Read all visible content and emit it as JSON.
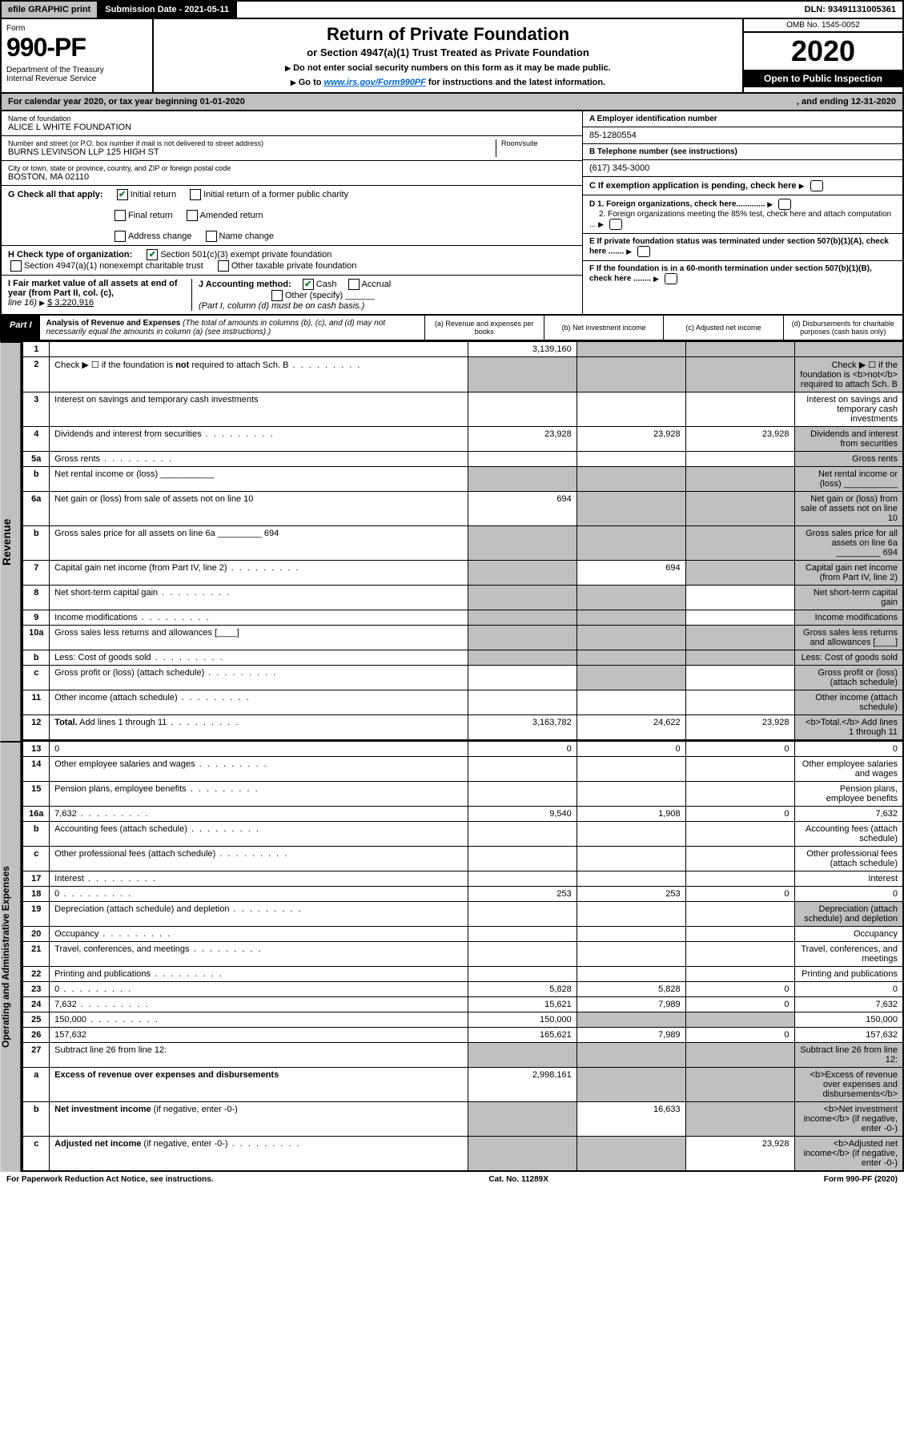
{
  "topbar": {
    "efile": "efile GRAPHIC print",
    "submission": "Submission Date - 2021-05-11",
    "dln": "DLN: 93491131005361"
  },
  "header": {
    "form": "Form",
    "formnum": "990-PF",
    "dept": "Department of the Treasury\nInternal Revenue Service",
    "title": "Return of Private Foundation",
    "subtitle": "or Section 4947(a)(1) Trust Treated as Private Foundation",
    "note1": "Do not enter social security numbers on this form as it may be made public.",
    "note2_pre": "Go to ",
    "note2_link": "www.irs.gov/Form990PF",
    "note2_post": " for instructions and the latest information.",
    "omb": "OMB No. 1545-0052",
    "year": "2020",
    "open": "Open to Public Inspection"
  },
  "calyear": {
    "pre": "For calendar year 2020, or tax year beginning 01-01-2020",
    "end": ", and ending 12-31-2020"
  },
  "id": {
    "name_lbl": "Name of foundation",
    "name": "ALICE L WHITE FOUNDATION",
    "addr_lbl": "Number and street (or P.O. box number if mail is not delivered to street address)",
    "addr": "BURNS LEVINSON LLP 125 HIGH ST",
    "room_lbl": "Room/suite",
    "city_lbl": "City or town, state or province, country, and ZIP or foreign postal code",
    "city": "BOSTON, MA  02110",
    "a_lbl": "A Employer identification number",
    "a_val": "85-1280554",
    "b_lbl": "B Telephone number (see instructions)",
    "b_val": "(617) 345-3000",
    "c_lbl": "C  If exemption application is pending, check here",
    "d1": "D 1. Foreign organizations, check here.............",
    "d2": "2. Foreign organizations meeting the 85% test, check here and attach computation ...",
    "e": "E  If private foundation status was terminated under section 507(b)(1)(A), check here .......",
    "f": "F  If the foundation is in a 60-month termination under section 507(b)(1)(B), check here ........"
  },
  "g": {
    "lbl": "G Check all that apply:",
    "initial": "Initial return",
    "initial_former": "Initial return of a former public charity",
    "final": "Final return",
    "amended": "Amended return",
    "addr": "Address change",
    "name": "Name change"
  },
  "h": {
    "lbl": "H Check type of organization:",
    "s501": "Section 501(c)(3) exempt private foundation",
    "s4947": "Section 4947(a)(1) nonexempt charitable trust",
    "other": "Other taxable private foundation"
  },
  "i": {
    "lbl": "I Fair market value of all assets at end of year (from Part II, col. (c),",
    "line": "line 16)",
    "val": "$  3,220,916"
  },
  "j": {
    "lbl": "J Accounting method:",
    "cash": "Cash",
    "accrual": "Accrual",
    "other": "Other (specify)",
    "note": "(Part I, column (d) must be on cash basis.)"
  },
  "part1": {
    "lbl": "Part I",
    "title": "Analysis of Revenue and Expenses",
    "desc": "(The total of amounts in columns (b), (c), and (d) may not necessarily equal the amounts in column (a) (see instructions).)",
    "col_a": "(a)   Revenue and expenses per books",
    "col_b": "(b)   Net investment income",
    "col_c": "(c)   Adjusted net income",
    "col_d": "(d)   Disbursements for charitable purposes (cash basis only)"
  },
  "revenue_label": "Revenue",
  "expense_label": "Operating and Administrative Expenses",
  "rows": [
    {
      "n": "1",
      "d": "",
      "a": "3,139,160",
      "b": "",
      "c": "",
      "shade_b": true,
      "shade_c": true,
      "shade_d": true
    },
    {
      "n": "2",
      "d": "Check ▶ ☐ if the foundation is <b>not</b> required to attach Sch. B",
      "dots": true,
      "shade_all": true
    },
    {
      "n": "3",
      "d": "Interest on savings and temporary cash investments"
    },
    {
      "n": "4",
      "d": "Dividends and interest from securities",
      "dots": true,
      "a": "23,928",
      "b": "23,928",
      "c": "23,928",
      "shade_d": true
    },
    {
      "n": "5a",
      "d": "Gross rents",
      "dots": true,
      "shade_d": true
    },
    {
      "n": "b",
      "d": "Net rental income or (loss)  ___________",
      "shade_all": true
    },
    {
      "n": "6a",
      "d": "Net gain or (loss) from sale of assets not on line 10",
      "a": "694",
      "shade_b": true,
      "shade_c": true,
      "shade_d": true
    },
    {
      "n": "b",
      "d": "Gross sales price for all assets on line 6a _________ 694",
      "shade_all": true
    },
    {
      "n": "7",
      "d": "Capital gain net income (from Part IV, line 2)",
      "dots": true,
      "b": "694",
      "shade_a": true,
      "shade_c": true,
      "shade_d": true
    },
    {
      "n": "8",
      "d": "Net short-term capital gain",
      "dots": true,
      "shade_a": true,
      "shade_b": true,
      "shade_d": true
    },
    {
      "n": "9",
      "d": "Income modifications",
      "dots": true,
      "shade_a": true,
      "shade_b": true,
      "shade_d": true
    },
    {
      "n": "10a",
      "d": "Gross sales less returns and allowances  [____]",
      "shade_all": true
    },
    {
      "n": "b",
      "d": "Less: Cost of goods sold",
      "dots": true,
      "shade_all": true
    },
    {
      "n": "c",
      "d": "Gross profit or (loss) (attach schedule)",
      "dots": true,
      "shade_b": true,
      "shade_d": true
    },
    {
      "n": "11",
      "d": "Other income (attach schedule)",
      "dots": true,
      "shade_d": true
    },
    {
      "n": "12",
      "d": "<b>Total.</b> Add lines 1 through 11",
      "dots": true,
      "a": "3,163,782",
      "b": "24,622",
      "c": "23,928",
      "shade_d": true
    }
  ],
  "exp_rows": [
    {
      "n": "13",
      "d": "0",
      "a": "0",
      "b": "0",
      "c": "0"
    },
    {
      "n": "14",
      "d": "Other employee salaries and wages",
      "dots": true
    },
    {
      "n": "15",
      "d": "Pension plans, employee benefits",
      "dots": true
    },
    {
      "n": "16a",
      "d": "7,632",
      "dots": true,
      "a": "9,540",
      "b": "1,908",
      "c": "0"
    },
    {
      "n": "b",
      "d": "Accounting fees (attach schedule)",
      "dots": true
    },
    {
      "n": "c",
      "d": "Other professional fees (attach schedule)",
      "dots": true
    },
    {
      "n": "17",
      "d": "Interest",
      "dots": true
    },
    {
      "n": "18",
      "d": "0",
      "dots": true,
      "a": "253",
      "b": "253",
      "c": "0"
    },
    {
      "n": "19",
      "d": "Depreciation (attach schedule) and depletion",
      "dots": true,
      "shade_d": true
    },
    {
      "n": "20",
      "d": "Occupancy",
      "dots": true
    },
    {
      "n": "21",
      "d": "Travel, conferences, and meetings",
      "dots": true
    },
    {
      "n": "22",
      "d": "Printing and publications",
      "dots": true
    },
    {
      "n": "23",
      "d": "0",
      "dots": true,
      "a": "5,828",
      "b": "5,828",
      "c": "0"
    },
    {
      "n": "24",
      "d": "7,632",
      "dots": true,
      "a": "15,621",
      "b": "7,989",
      "c": "0"
    },
    {
      "n": "25",
      "d": "150,000",
      "dots": true,
      "a": "150,000",
      "shade_b": true,
      "shade_c": true
    },
    {
      "n": "26",
      "d": "157,632",
      "a": "165,621",
      "b": "7,989",
      "c": "0"
    },
    {
      "n": "27",
      "d": "Subtract line 26 from line 12:",
      "shade_all": true
    },
    {
      "n": "a",
      "d": "<b>Excess of revenue over expenses and disbursements</b>",
      "a": "2,998,161",
      "shade_b": true,
      "shade_c": true,
      "shade_d": true
    },
    {
      "n": "b",
      "d": "<b>Net investment income</b> (if negative, enter -0-)",
      "b": "16,633",
      "shade_a": true,
      "shade_c": true,
      "shade_d": true
    },
    {
      "n": "c",
      "d": "<b>Adjusted net income</b> (if negative, enter -0-)",
      "dots": true,
      "c": "23,928",
      "shade_a": true,
      "shade_b": true,
      "shade_d": true
    }
  ],
  "footer": {
    "left": "For Paperwork Reduction Act Notice, see instructions.",
    "mid": "Cat. No. 11289X",
    "right": "Form 990-PF (2020)"
  }
}
